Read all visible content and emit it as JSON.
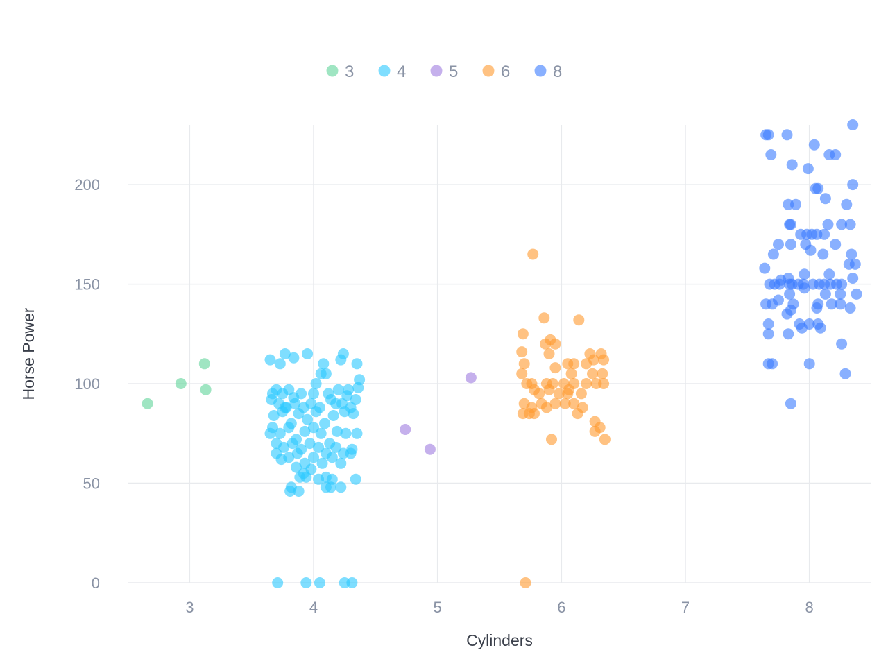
{
  "chart_data": {
    "type": "scatter",
    "xlabel": "Cylinders",
    "ylabel": "Horse Power",
    "xlim": [
      2.5,
      8.5
    ],
    "ylim": [
      0,
      230
    ],
    "x_ticks": [
      3,
      4,
      5,
      6,
      7,
      8
    ],
    "y_ticks": [
      0,
      50,
      100,
      150,
      200
    ],
    "grid": true,
    "legend_position": "top",
    "jitter": true,
    "series": [
      {
        "name": "3",
        "color": "#5fd39a",
        "points": [
          [
            2.66,
            90
          ],
          [
            2.93,
            100
          ],
          [
            3.12,
            110
          ],
          [
            3.13,
            97
          ]
        ]
      },
      {
        "name": "4",
        "color": "#29c8ff",
        "points": [
          [
            3.65,
            112
          ],
          [
            3.77,
            115
          ],
          [
            3.84,
            113
          ],
          [
            3.73,
            110
          ],
          [
            3.95,
            115
          ],
          [
            4.08,
            110
          ],
          [
            4.22,
            112
          ],
          [
            4.24,
            115
          ],
          [
            4.35,
            110
          ],
          [
            4.37,
            102
          ],
          [
            4.06,
            105
          ],
          [
            4.1,
            105
          ],
          [
            4.02,
            100
          ],
          [
            3.67,
            95
          ],
          [
            3.7,
            97
          ],
          [
            3.75,
            95
          ],
          [
            3.8,
            97
          ],
          [
            3.9,
            95
          ],
          [
            4.0,
            95
          ],
          [
            4.12,
            95
          ],
          [
            4.2,
            97
          ],
          [
            4.28,
            97
          ],
          [
            4.36,
            98
          ],
          [
            3.66,
            92
          ],
          [
            3.72,
            90
          ],
          [
            3.78,
            88
          ],
          [
            3.85,
            90
          ],
          [
            3.92,
            88
          ],
          [
            3.98,
            90
          ],
          [
            4.05,
            88
          ],
          [
            4.14,
            92
          ],
          [
            4.23,
            90
          ],
          [
            4.3,
            88
          ],
          [
            4.34,
            92
          ],
          [
            3.68,
            84
          ],
          [
            3.75,
            86
          ],
          [
            3.82,
            80
          ],
          [
            3.88,
            85
          ],
          [
            3.95,
            82
          ],
          [
            4.02,
            86
          ],
          [
            4.09,
            80
          ],
          [
            4.16,
            84
          ],
          [
            4.25,
            86
          ],
          [
            4.32,
            85
          ],
          [
            3.67,
            78
          ],
          [
            3.73,
            75
          ],
          [
            3.8,
            78
          ],
          [
            3.86,
            72
          ],
          [
            3.93,
            76
          ],
          [
            4.0,
            78
          ],
          [
            4.06,
            75
          ],
          [
            4.13,
            70
          ],
          [
            4.19,
            76
          ],
          [
            4.26,
            75
          ],
          [
            4.35,
            75
          ],
          [
            3.65,
            75
          ],
          [
            3.7,
            70
          ],
          [
            3.76,
            68
          ],
          [
            3.83,
            70
          ],
          [
            3.9,
            67
          ],
          [
            3.97,
            70
          ],
          [
            4.04,
            68
          ],
          [
            4.1,
            65
          ],
          [
            4.18,
            68
          ],
          [
            4.24,
            65
          ],
          [
            4.31,
            67
          ],
          [
            3.7,
            65
          ],
          [
            3.74,
            62
          ],
          [
            3.8,
            63
          ],
          [
            3.87,
            65
          ],
          [
            3.93,
            60
          ],
          [
            4.0,
            63
          ],
          [
            4.07,
            60
          ],
          [
            4.15,
            63
          ],
          [
            4.22,
            60
          ],
          [
            4.3,
            65
          ],
          [
            3.86,
            58
          ],
          [
            3.92,
            55
          ],
          [
            3.98,
            57
          ],
          [
            3.89,
            53
          ],
          [
            3.94,
            53
          ],
          [
            4.04,
            52
          ],
          [
            4.1,
            53
          ],
          [
            4.15,
            52
          ],
          [
            3.82,
            48
          ],
          [
            3.88,
            46
          ],
          [
            4.1,
            48
          ],
          [
            4.14,
            48
          ],
          [
            4.22,
            48
          ],
          [
            4.34,
            52
          ],
          [
            3.81,
            46
          ],
          [
            3.77,
            88
          ],
          [
            3.84,
            93
          ],
          [
            4.18,
            90
          ],
          [
            4.27,
            94
          ],
          [
            3.71,
            0
          ],
          [
            3.94,
            0
          ],
          [
            4.05,
            0
          ],
          [
            4.25,
            0
          ],
          [
            4.31,
            0
          ]
        ]
      },
      {
        "name": "5",
        "color": "#9f7be0",
        "points": [
          [
            4.74,
            77
          ],
          [
            4.94,
            67
          ],
          [
            5.27,
            103
          ]
        ]
      },
      {
        "name": "6",
        "color": "#ff9a2e",
        "points": [
          [
            5.77,
            165
          ],
          [
            6.14,
            132
          ],
          [
            5.86,
            133
          ],
          [
            5.69,
            125
          ],
          [
            5.68,
            116
          ],
          [
            5.87,
            120
          ],
          [
            5.91,
            122
          ],
          [
            5.95,
            120
          ],
          [
            5.9,
            115
          ],
          [
            6.23,
            115
          ],
          [
            6.32,
            115
          ],
          [
            5.7,
            110
          ],
          [
            6.05,
            110
          ],
          [
            6.1,
            110
          ],
          [
            6.2,
            110
          ],
          [
            6.26,
            112
          ],
          [
            6.34,
            112
          ],
          [
            5.68,
            105
          ],
          [
            5.95,
            108
          ],
          [
            6.08,
            105
          ],
          [
            6.25,
            105
          ],
          [
            6.33,
            105
          ],
          [
            5.72,
            100
          ],
          [
            5.76,
            100
          ],
          [
            5.88,
            100
          ],
          [
            5.93,
            100
          ],
          [
            6.02,
            100
          ],
          [
            6.1,
            100
          ],
          [
            6.2,
            100
          ],
          [
            6.28,
            100
          ],
          [
            6.34,
            100
          ],
          [
            5.78,
            97
          ],
          [
            5.82,
            95
          ],
          [
            5.9,
            97
          ],
          [
            5.98,
            95
          ],
          [
            6.06,
            97
          ],
          [
            6.16,
            95
          ],
          [
            5.7,
            90
          ],
          [
            5.76,
            88
          ],
          [
            5.84,
            90
          ],
          [
            5.88,
            88
          ],
          [
            5.95,
            90
          ],
          [
            6.03,
            90
          ],
          [
            6.1,
            90
          ],
          [
            6.17,
            88
          ],
          [
            5.69,
            85
          ],
          [
            5.74,
            85
          ],
          [
            5.78,
            85
          ],
          [
            6.13,
            85
          ],
          [
            6.27,
            81
          ],
          [
            6.31,
            78
          ],
          [
            6.27,
            76
          ],
          [
            5.92,
            72
          ],
          [
            6.35,
            72
          ],
          [
            6.05,
            95
          ],
          [
            5.71,
            0
          ]
        ]
      },
      {
        "name": "8",
        "color": "#3a7bff",
        "points": [
          [
            8.35,
            230
          ],
          [
            7.65,
            225
          ],
          [
            7.67,
            225
          ],
          [
            7.82,
            225
          ],
          [
            8.04,
            220
          ],
          [
            7.69,
            215
          ],
          [
            8.16,
            215
          ],
          [
            8.21,
            215
          ],
          [
            7.86,
            210
          ],
          [
            7.99,
            208
          ],
          [
            8.35,
            200
          ],
          [
            8.05,
            198
          ],
          [
            8.07,
            198
          ],
          [
            8.13,
            193
          ],
          [
            7.83,
            190
          ],
          [
            7.89,
            190
          ],
          [
            8.3,
            190
          ],
          [
            7.85,
            180
          ],
          [
            7.84,
            180
          ],
          [
            8.15,
            180
          ],
          [
            8.26,
            180
          ],
          [
            8.33,
            180
          ],
          [
            7.93,
            175
          ],
          [
            7.98,
            175
          ],
          [
            8.06,
            175
          ],
          [
            8.12,
            175
          ],
          [
            8.02,
            175
          ],
          [
            7.75,
            170
          ],
          [
            7.85,
            170
          ],
          [
            7.97,
            170
          ],
          [
            8.21,
            170
          ],
          [
            8.01,
            167
          ],
          [
            8.11,
            165
          ],
          [
            7.71,
            165
          ],
          [
            8.34,
            165
          ],
          [
            8.37,
            160
          ],
          [
            8.32,
            160
          ],
          [
            7.64,
            158
          ],
          [
            7.77,
            152
          ],
          [
            7.83,
            153
          ],
          [
            7.96,
            155
          ],
          [
            8.16,
            155
          ],
          [
            7.68,
            150
          ],
          [
            7.72,
            150
          ],
          [
            7.76,
            150
          ],
          [
            7.84,
            150
          ],
          [
            7.86,
            150
          ],
          [
            7.91,
            150
          ],
          [
            7.95,
            150
          ],
          [
            8.03,
            150
          ],
          [
            8.08,
            150
          ],
          [
            8.12,
            150
          ],
          [
            8.17,
            150
          ],
          [
            8.22,
            150
          ],
          [
            8.26,
            150
          ],
          [
            8.35,
            153
          ],
          [
            7.84,
            145
          ],
          [
            7.96,
            148
          ],
          [
            8.13,
            145
          ],
          [
            8.25,
            145
          ],
          [
            8.38,
            145
          ],
          [
            7.65,
            140
          ],
          [
            7.7,
            140
          ],
          [
            7.75,
            142
          ],
          [
            7.87,
            140
          ],
          [
            8.07,
            140
          ],
          [
            8.18,
            140
          ],
          [
            8.25,
            140
          ],
          [
            8.33,
            138
          ],
          [
            7.82,
            135
          ],
          [
            7.85,
            137
          ],
          [
            8.06,
            138
          ],
          [
            7.67,
            130
          ],
          [
            7.92,
            130
          ],
          [
            7.94,
            128
          ],
          [
            8.0,
            130
          ],
          [
            8.07,
            130
          ],
          [
            8.09,
            128
          ],
          [
            7.67,
            125
          ],
          [
            7.83,
            125
          ],
          [
            8.26,
            120
          ],
          [
            7.67,
            110
          ],
          [
            7.7,
            110
          ],
          [
            8.0,
            110
          ],
          [
            8.29,
            105
          ],
          [
            7.85,
            90
          ]
        ]
      }
    ]
  }
}
